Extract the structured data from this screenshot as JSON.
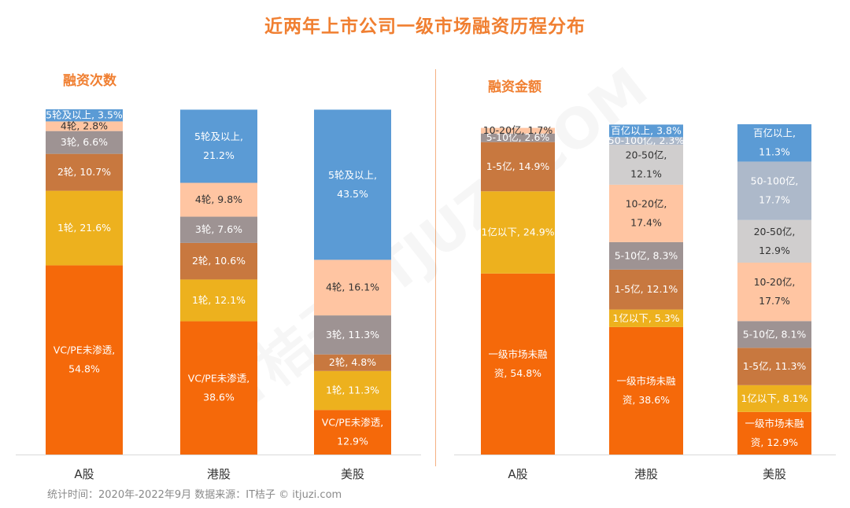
{
  "title": "近两年上市公司一级市场融资历程分布",
  "footnote": "统计时间：2020年-2022年9月   数据来源：IT桔子 © itjuzi.com",
  "watermark": "IT桔子 ITJUZI.COM",
  "chart_data": [
    {
      "type": "bar",
      "stacked": true,
      "title": "融资次数",
      "categories": [
        "A股",
        "港股",
        "美股"
      ],
      "ylim": [
        0,
        100
      ],
      "series": [
        {
          "name": "VC/PE未渗透",
          "color": "#F5690A",
          "values": [
            54.8,
            38.6,
            12.9
          ],
          "labels": [
            "VC/PE未渗透,\n54.8%",
            "VC/PE未渗透,\n38.6%",
            "VC/PE未渗透,\n12.9%"
          ]
        },
        {
          "name": "1轮",
          "color": "#EDB11E",
          "values": [
            21.6,
            12.1,
            11.3
          ],
          "labels": [
            "1轮, 21.6%",
            "1轮, 12.1%",
            "1轮, 11.3%"
          ]
        },
        {
          "name": "2轮",
          "color": "#C8783F",
          "values": [
            10.7,
            10.6,
            4.8
          ],
          "labels": [
            "2轮, 10.7%",
            "2轮, 10.6%",
            "2轮, 4.8%"
          ]
        },
        {
          "name": "3轮",
          "color": "#9E9393",
          "values": [
            6.6,
            7.6,
            11.3
          ],
          "labels": [
            "3轮, 6.6%",
            "3轮, 7.6%",
            "3轮, 11.3%"
          ]
        },
        {
          "name": "4轮",
          "color": "#FFC5A2",
          "values": [
            2.8,
            9.8,
            16.1
          ],
          "labels": [
            "4轮, 2.8%",
            "4轮, 9.8%",
            "4轮, 16.1%"
          ]
        },
        {
          "name": "5轮及以上",
          "color": "#5B9BD5",
          "values": [
            3.5,
            21.2,
            43.5
          ],
          "labels": [
            "5轮及以上, 3.5%",
            "5轮及以上,\n21.2%",
            "5轮及以上,\n43.5%"
          ]
        }
      ]
    },
    {
      "type": "bar",
      "stacked": true,
      "title": "融资金额",
      "categories": [
        "A股",
        "港股",
        "美股"
      ],
      "ylim": [
        0,
        100
      ],
      "series": [
        {
          "name": "一级市场未融资",
          "color": "#F5690A",
          "values": [
            54.8,
            38.6,
            12.9
          ],
          "labels": [
            "一级市场未融\n资, 54.8%",
            "一级市场未融\n资, 38.6%",
            "一级市场未融\n资, 12.9%"
          ]
        },
        {
          "name": "1亿以下",
          "color": "#EDB11E",
          "values": [
            24.9,
            5.3,
            8.1
          ],
          "labels": [
            "1亿以下, 24.9%",
            "1亿以下, 5.3%",
            "1亿以下, 8.1%"
          ]
        },
        {
          "name": "1-5亿",
          "color": "#C8783F",
          "values": [
            14.9,
            12.1,
            11.3
          ],
          "labels": [
            "1-5亿, 14.9%",
            "1-5亿, 12.1%",
            "1-5亿, 11.3%"
          ]
        },
        {
          "name": "5-10亿",
          "color": "#9E9393",
          "values": [
            2.6,
            8.3,
            8.1
          ],
          "labels": [
            "5-10亿, 2.6%",
            "5-10亿, 8.3%",
            "5-10亿, 8.1%"
          ]
        },
        {
          "name": "10-20亿",
          "color": "#FFC5A2",
          "values": [
            1.7,
            17.4,
            17.7
          ],
          "labels": [
            "10-20亿, 1.7%",
            "10-20亿,\n17.4%",
            "10-20亿,\n17.7%"
          ]
        },
        {
          "name": "20-50亿",
          "color": "#D0CECE",
          "values": [
            0,
            12.1,
            12.9
          ],
          "labels": [
            "",
            "20-50亿,\n12.1%",
            "20-50亿,\n12.9%"
          ]
        },
        {
          "name": "50-100亿",
          "color": "#ADB9CA",
          "values": [
            0,
            2.3,
            17.7
          ],
          "labels": [
            "",
            "50-100亿, 2.3%",
            "50-100亿,\n17.7%"
          ]
        },
        {
          "name": "百亿以上",
          "color": "#5B9BD5",
          "values": [
            0,
            3.8,
            11.3
          ],
          "labels": [
            "",
            "百亿以上, 3.8%",
            "百亿以上,\n11.3%"
          ]
        }
      ]
    }
  ]
}
